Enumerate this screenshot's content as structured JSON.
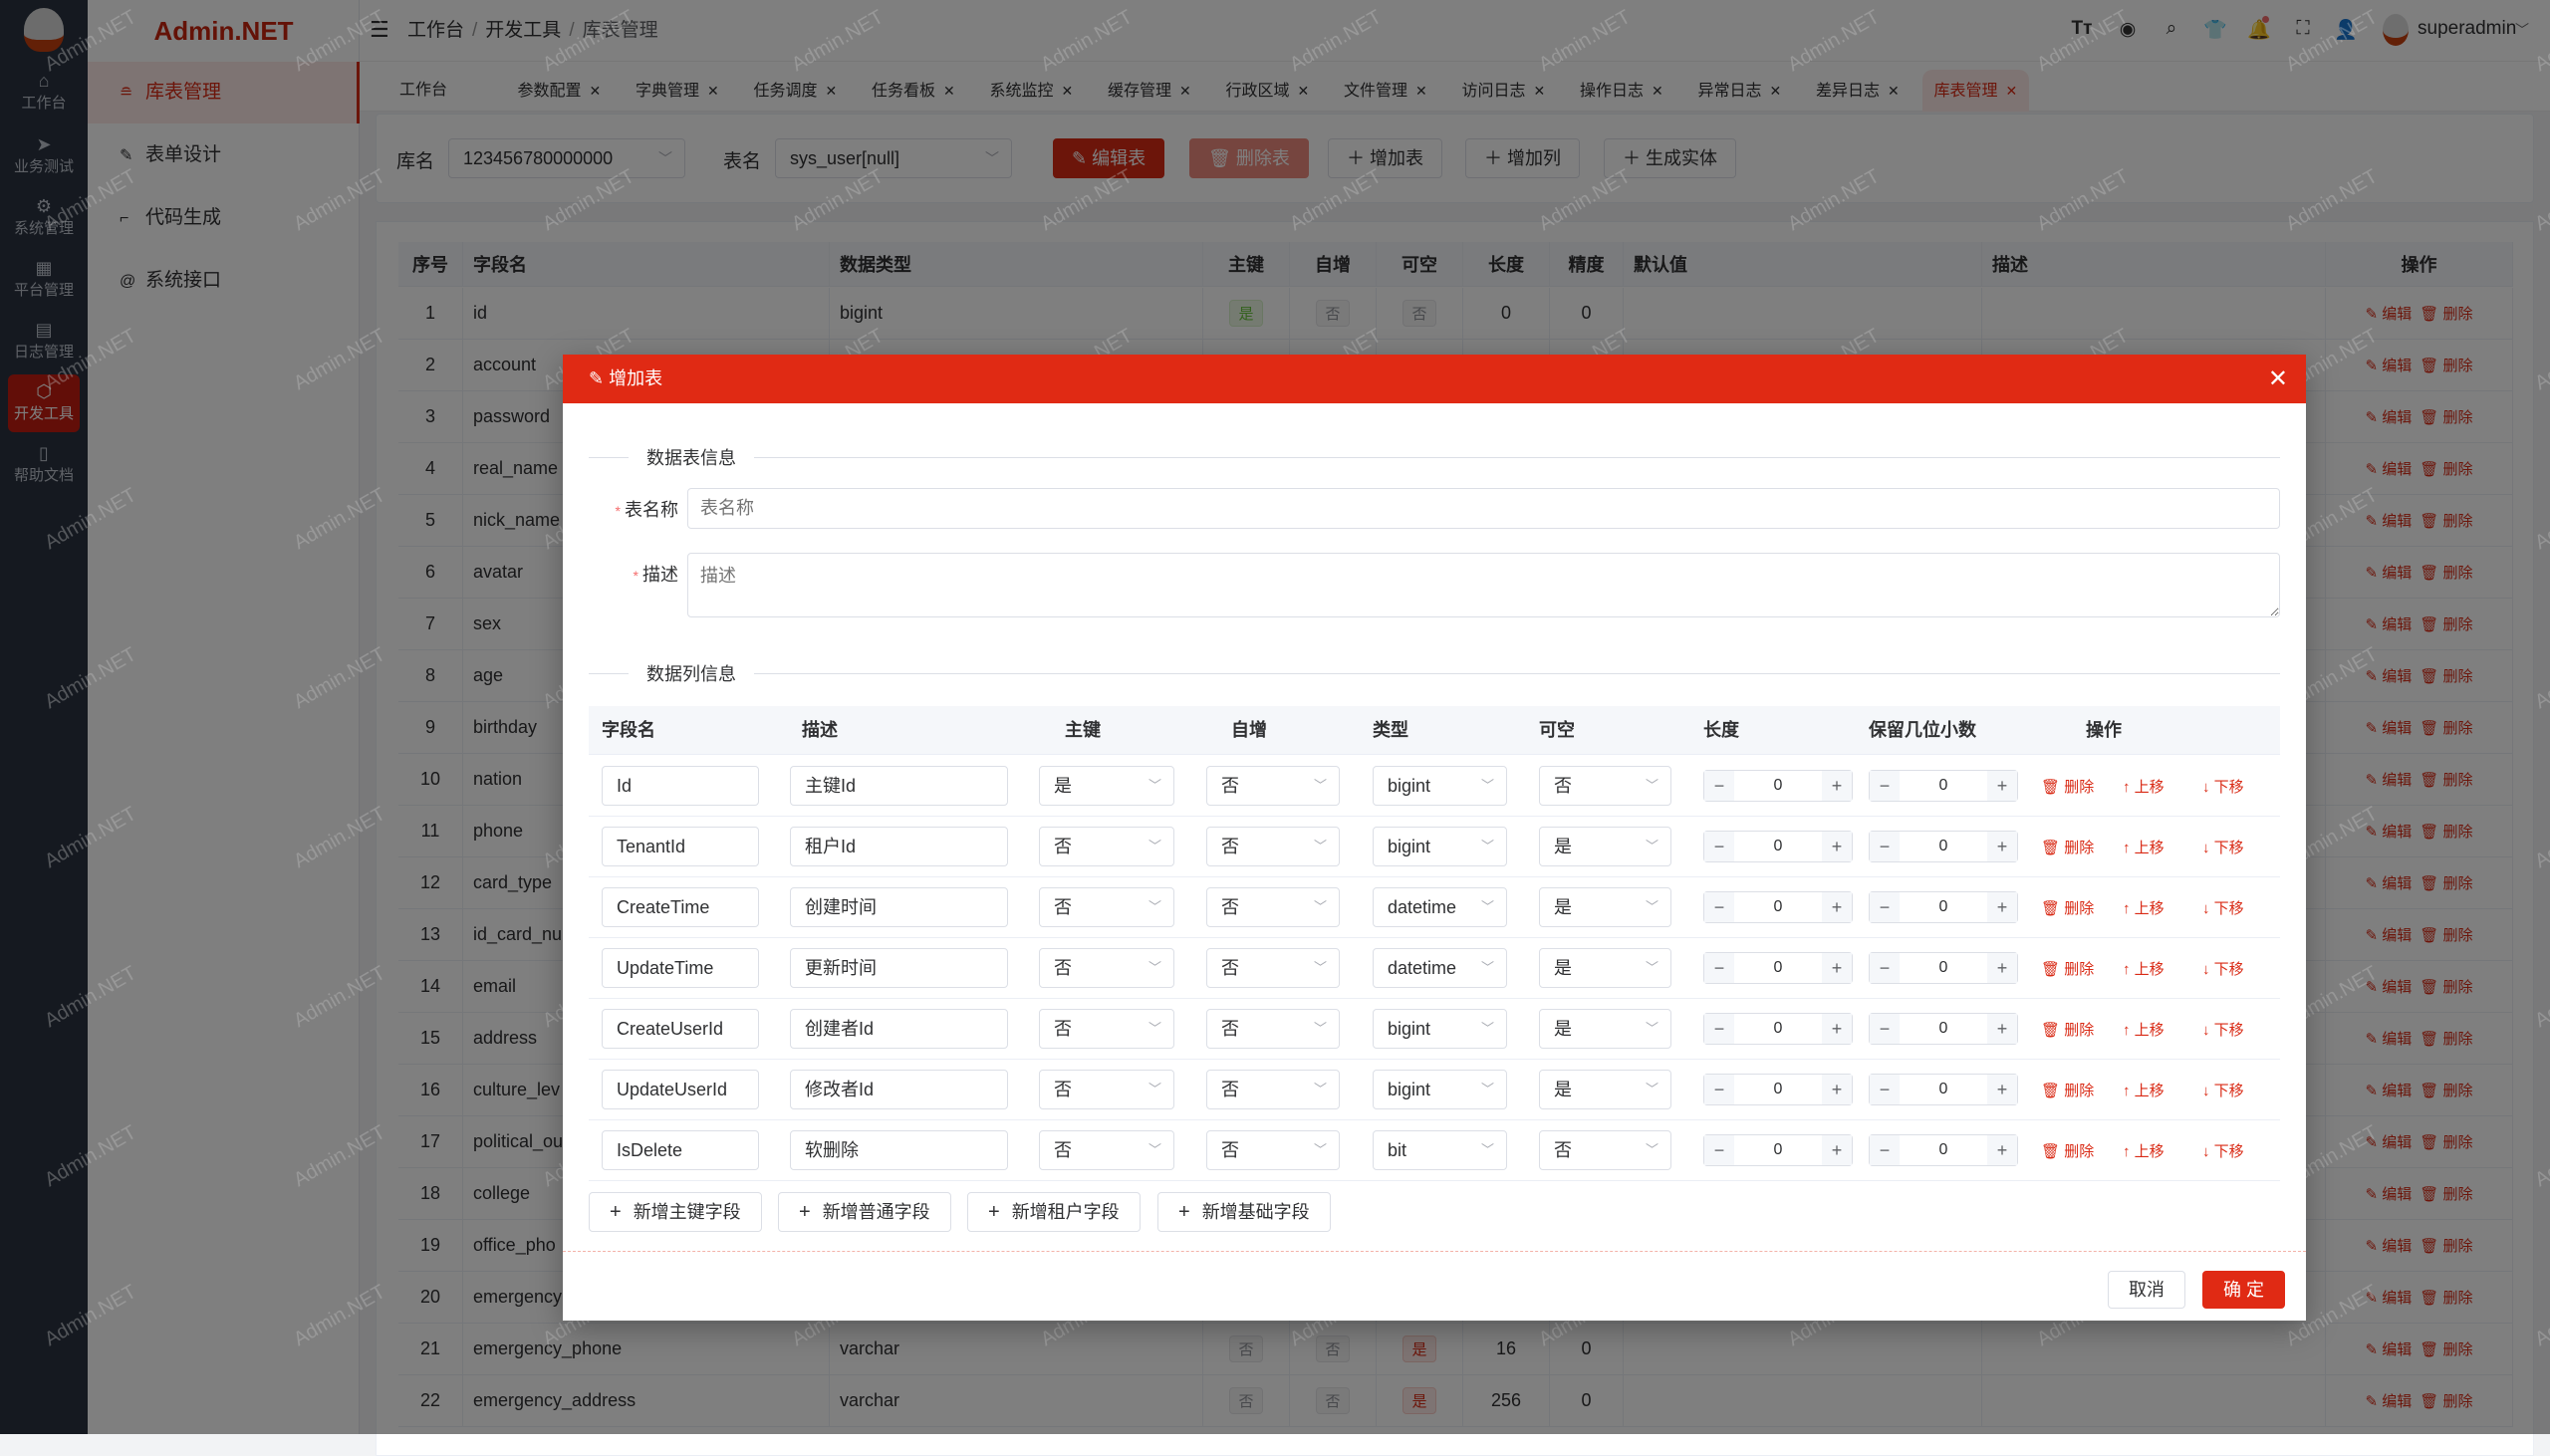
{
  "watermark": "Admin.NET",
  "colors": {
    "primary": "#d92a15",
    "dialog_header": "#e02a14",
    "sidebar": "#2a3240"
  },
  "rail": {
    "items": [
      {
        "label": "工作台",
        "icon": "home-icon"
      },
      {
        "label": "业务测试",
        "icon": "send-icon"
      },
      {
        "label": "系统管理",
        "icon": "gear-icon"
      },
      {
        "label": "平台管理",
        "icon": "grid-icon"
      },
      {
        "label": "日志管理",
        "icon": "document-icon"
      },
      {
        "label": "开发工具",
        "icon": "chip-icon",
        "active": true
      },
      {
        "label": "帮助文档",
        "icon": "book-icon"
      }
    ]
  },
  "brand": "Admin.NET",
  "submenu": {
    "items": [
      {
        "label": "库表管理",
        "icon": "database-icon",
        "active": true
      },
      {
        "label": "表单设计",
        "icon": "edit-icon"
      },
      {
        "label": "代码生成",
        "icon": "crop-icon"
      },
      {
        "label": "系统接口",
        "icon": "api-icon"
      }
    ]
  },
  "breadcrumb": [
    "工作台",
    "开发工具",
    "库表管理"
  ],
  "header": {
    "username": "superadmin"
  },
  "tabs": [
    {
      "label": "工作台",
      "closable": false
    },
    {
      "label": "参数配置",
      "closable": true
    },
    {
      "label": "字典管理",
      "closable": true
    },
    {
      "label": "任务调度",
      "closable": true
    },
    {
      "label": "任务看板",
      "closable": true
    },
    {
      "label": "系统监控",
      "closable": true
    },
    {
      "label": "缓存管理",
      "closable": true
    },
    {
      "label": "行政区域",
      "closable": true
    },
    {
      "label": "文件管理",
      "closable": true
    },
    {
      "label": "访问日志",
      "closable": true
    },
    {
      "label": "操作日志",
      "closable": true
    },
    {
      "label": "异常日志",
      "closable": true
    },
    {
      "label": "差异日志",
      "closable": true
    },
    {
      "label": "库表管理",
      "closable": true,
      "active": true
    }
  ],
  "toolbar": {
    "db_label": "库名",
    "db_value": "123456780000000",
    "table_label": "表名",
    "table_value": "sys_user[null]",
    "edit_table": "编辑表",
    "delete_table": "删除表",
    "add_table": "增加表",
    "add_column": "增加列",
    "gen_entity": "生成实体"
  },
  "table": {
    "columns": [
      "序号",
      "字段名",
      "数据类型",
      "主键",
      "自增",
      "可空",
      "长度",
      "精度",
      "默认值",
      "描述",
      "操作"
    ],
    "edit_label": "编辑",
    "delete_label": "删除",
    "rows": [
      {
        "no": "1",
        "name": "id",
        "type": "bigint",
        "pk": "是",
        "inc": "否",
        "null": "否",
        "len": "0",
        "prec": "0"
      },
      {
        "no": "2",
        "name": "account"
      },
      {
        "no": "3",
        "name": "password"
      },
      {
        "no": "4",
        "name": "real_name"
      },
      {
        "no": "5",
        "name": "nick_name"
      },
      {
        "no": "6",
        "name": "avatar"
      },
      {
        "no": "7",
        "name": "sex"
      },
      {
        "no": "8",
        "name": "age"
      },
      {
        "no": "9",
        "name": "birthday"
      },
      {
        "no": "10",
        "name": "nation"
      },
      {
        "no": "11",
        "name": "phone"
      },
      {
        "no": "12",
        "name": "card_type"
      },
      {
        "no": "13",
        "name": "id_card_nu"
      },
      {
        "no": "14",
        "name": "email"
      },
      {
        "no": "15",
        "name": "address"
      },
      {
        "no": "16",
        "name": "culture_lev"
      },
      {
        "no": "17",
        "name": "political_ou"
      },
      {
        "no": "18",
        "name": "college"
      },
      {
        "no": "19",
        "name": "office_pho"
      },
      {
        "no": "20",
        "name": "emergency"
      },
      {
        "no": "21",
        "name": "emergency_phone",
        "type": "varchar",
        "pk": "否",
        "inc": "否",
        "null": "是",
        "len": "16",
        "prec": "0"
      },
      {
        "no": "22",
        "name": "emergency_address",
        "type": "varchar",
        "pk": "否",
        "inc": "否",
        "null": "是",
        "len": "256",
        "prec": "0"
      }
    ]
  },
  "dialog": {
    "title": "增加表",
    "section_table": "数据表信息",
    "table_name_label": "表名称",
    "table_name_placeholder": "表名称",
    "table_name_value": "",
    "desc_label": "描述",
    "desc_placeholder": "描述",
    "desc_value": "",
    "section_columns": "数据列信息",
    "columns": [
      "字段名",
      "描述",
      "主键",
      "自增",
      "类型",
      "可空",
      "长度",
      "保留几位小数",
      "操作"
    ],
    "actions": {
      "delete": "删除",
      "up": "上移",
      "down": "下移"
    },
    "rows": [
      {
        "name": "Id",
        "desc": "主键Id",
        "pk": "是",
        "inc": "否",
        "type": "bigint",
        "null": "否",
        "len": "0",
        "dec": "0"
      },
      {
        "name": "TenantId",
        "desc": "租户Id",
        "pk": "否",
        "inc": "否",
        "type": "bigint",
        "null": "是",
        "len": "0",
        "dec": "0"
      },
      {
        "name": "CreateTime",
        "desc": "创建时间",
        "pk": "否",
        "inc": "否",
        "type": "datetime",
        "null": "是",
        "len": "0",
        "dec": "0"
      },
      {
        "name": "UpdateTime",
        "desc": "更新时间",
        "pk": "否",
        "inc": "否",
        "type": "datetime",
        "null": "是",
        "len": "0",
        "dec": "0"
      },
      {
        "name": "CreateUserId",
        "desc": "创建者Id",
        "pk": "否",
        "inc": "否",
        "type": "bigint",
        "null": "是",
        "len": "0",
        "dec": "0"
      },
      {
        "name": "UpdateUserId",
        "desc": "修改者Id",
        "pk": "否",
        "inc": "否",
        "type": "bigint",
        "null": "是",
        "len": "0",
        "dec": "0"
      },
      {
        "name": "IsDelete",
        "desc": "软删除",
        "pk": "否",
        "inc": "否",
        "type": "bit",
        "null": "否",
        "len": "0",
        "dec": "0"
      }
    ],
    "add_buttons": [
      "新增主键字段",
      "新增普通字段",
      "新增租户字段",
      "新增基础字段"
    ],
    "cancel": "取消",
    "confirm": "确 定"
  }
}
